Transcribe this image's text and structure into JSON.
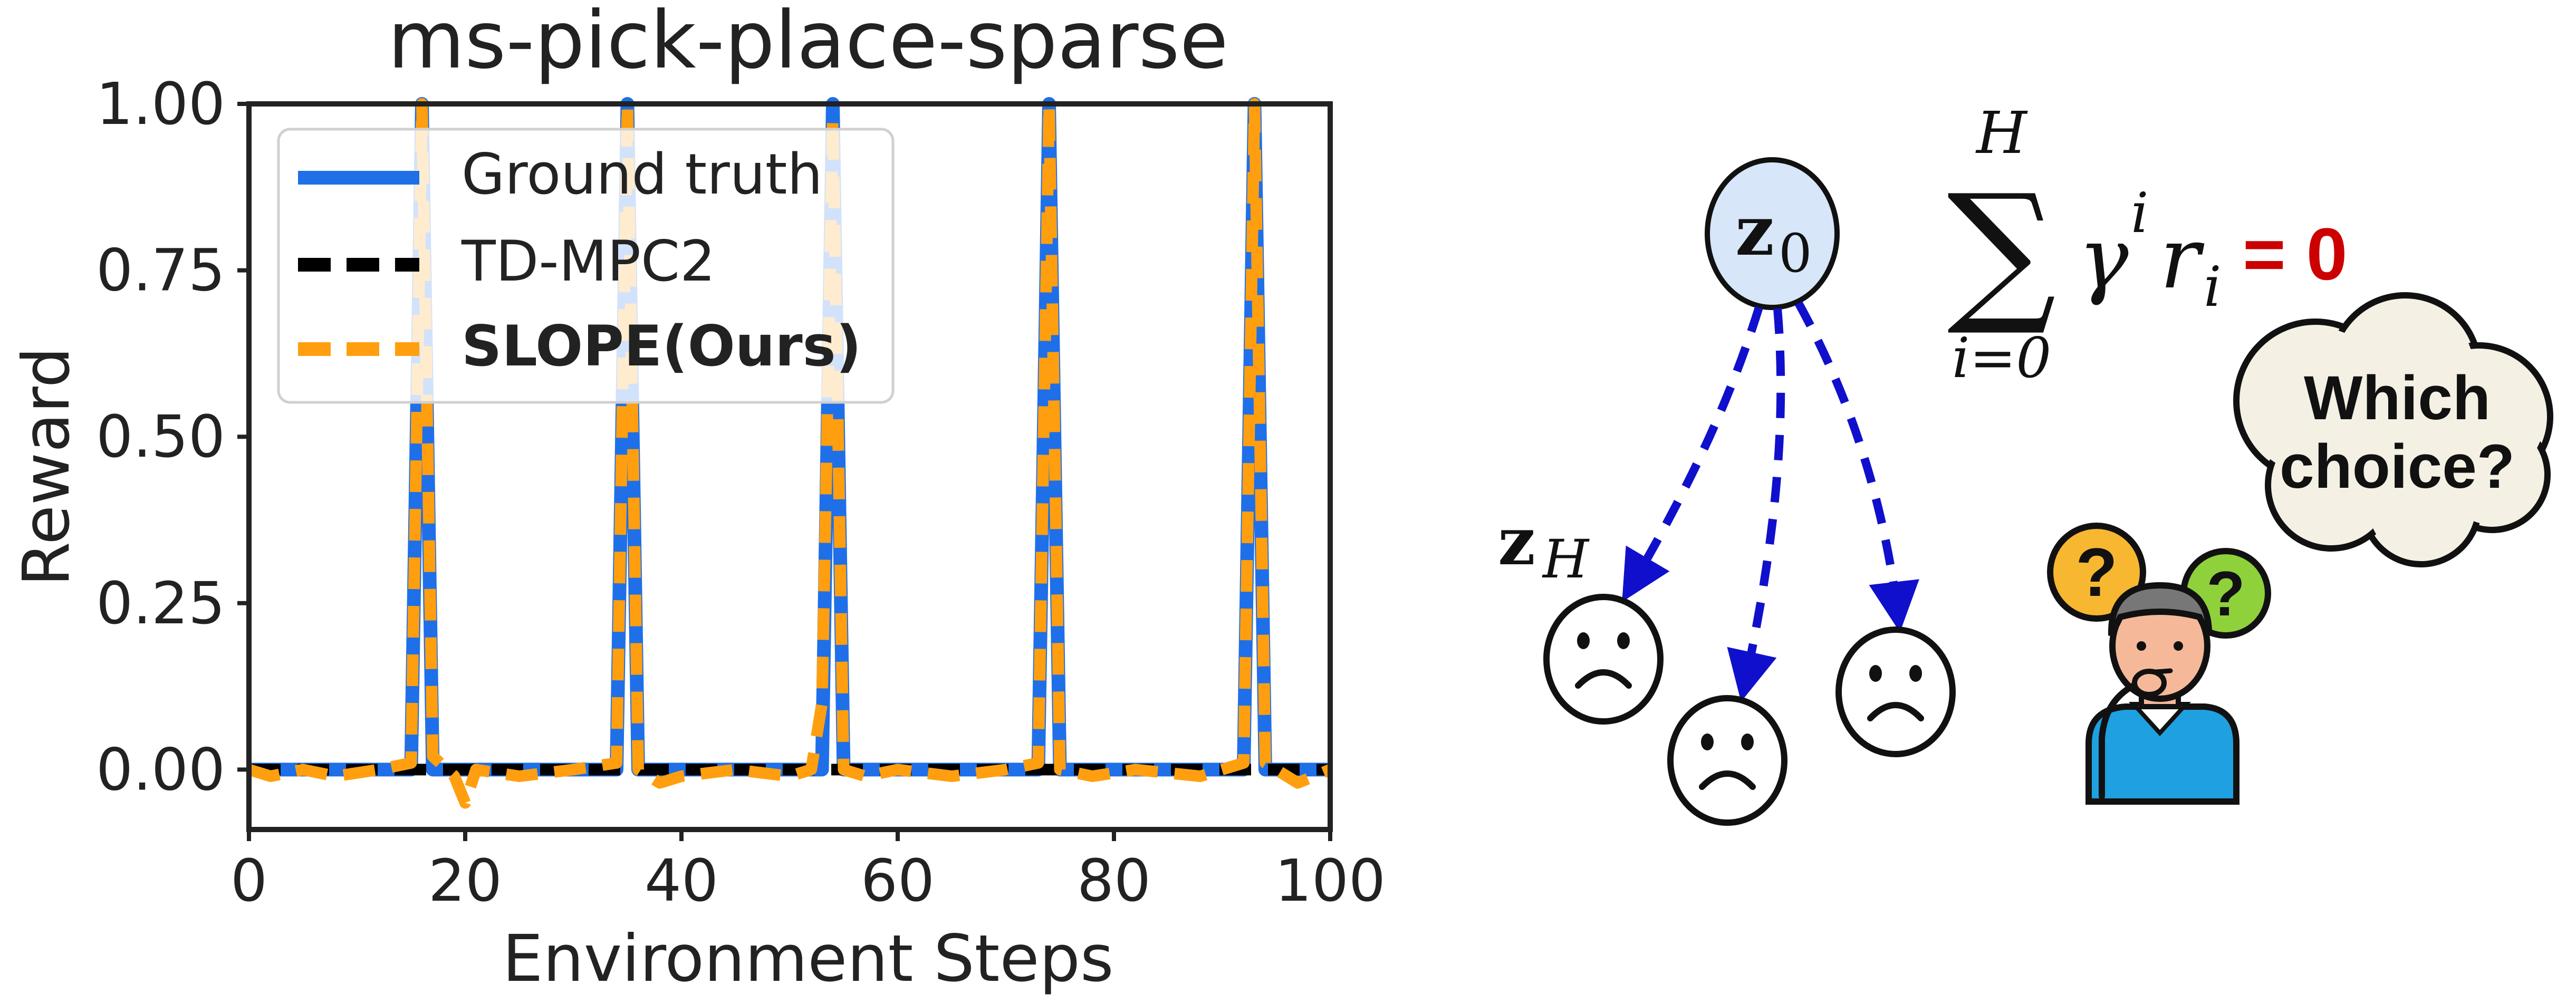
{
  "chart_data": {
    "type": "line",
    "title": "ms-pick-place-sparse",
    "xlabel": "Environment Steps",
    "ylabel": "Reward",
    "xlim": [
      0,
      100
    ],
    "ylim": [
      -0.09,
      1.0
    ],
    "xticks": [
      0,
      20,
      40,
      60,
      80,
      100
    ],
    "xtick_labels": [
      "0",
      "20",
      "40",
      "60",
      "80",
      "100"
    ],
    "yticks": [
      0.0,
      0.25,
      0.5,
      0.75,
      1.0
    ],
    "ytick_labels": [
      "0.00",
      "0.25",
      "0.50",
      "0.75",
      "1.00"
    ],
    "grid": false,
    "legend_position": "top-left",
    "series": [
      {
        "name": "Ground truth",
        "color": "#1f6fe8",
        "style": "solid",
        "x": [
          0,
          15,
          16,
          17,
          34,
          35,
          36,
          53,
          54,
          55,
          73,
          74,
          75,
          92,
          93,
          94,
          100
        ],
        "y": [
          0,
          0,
          1,
          0,
          0,
          1,
          0,
          0,
          1,
          0,
          0,
          1,
          0,
          0,
          1,
          0,
          0
        ]
      },
      {
        "name": "TD-MPC2",
        "color": "#000000",
        "style": "dashed",
        "x": [
          0,
          100
        ],
        "y": [
          0,
          0
        ]
      },
      {
        "name": "SLOPE(Ours)",
        "color": "#ff9f0f",
        "style": "dashed",
        "bold_label": true,
        "x": [
          0,
          2,
          5,
          8,
          12,
          15,
          16,
          17,
          19,
          20,
          21,
          25,
          30,
          34,
          35,
          36,
          38,
          40,
          45,
          50,
          52,
          53,
          54,
          55,
          57,
          60,
          65,
          70,
          73,
          74,
          75,
          78,
          82,
          88,
          92,
          93,
          94,
          97,
          100
        ],
        "y": [
          0,
          -0.01,
          0.0,
          -0.01,
          0.0,
          0.01,
          1.0,
          0.02,
          -0.01,
          -0.05,
          0.0,
          -0.01,
          0.0,
          0.01,
          1.0,
          0.0,
          -0.02,
          -0.01,
          0.0,
          -0.01,
          0.0,
          0.1,
          0.98,
          0.0,
          -0.01,
          0.0,
          -0.01,
          0.0,
          0.01,
          1.0,
          0.0,
          -0.01,
          0.0,
          -0.01,
          0.01,
          1.0,
          0.01,
          -0.02,
          0.0
        ]
      }
    ]
  },
  "diagram": {
    "root_node": {
      "symbol": "z",
      "subscript": "0"
    },
    "leaf_label": {
      "symbol": "z",
      "subscript": "H"
    },
    "sum_upper": "H",
    "sum_lower": "i=0",
    "sum_term": "γ",
    "sum_term_sup": "i",
    "sum_term_r": "r",
    "sum_term_r_sub": "i",
    "equals_zero": "= 0",
    "thought_bubble": [
      "Which",
      "choice?"
    ],
    "leaves": [
      {
        "face": "sad-face"
      },
      {
        "face": "sad-face"
      },
      {
        "face": "sad-face"
      }
    ],
    "colors": {
      "node_fill": "#d7e6f8",
      "arrow": "#1010cc",
      "equals_zero": "#cc0000",
      "bubble_fill": "#f4f1e4",
      "question_left": "#f7b731",
      "question_right": "#8fd13b",
      "shirt": "#1fa0e0",
      "skin": "#f5b99a",
      "hair": "#777777"
    }
  }
}
